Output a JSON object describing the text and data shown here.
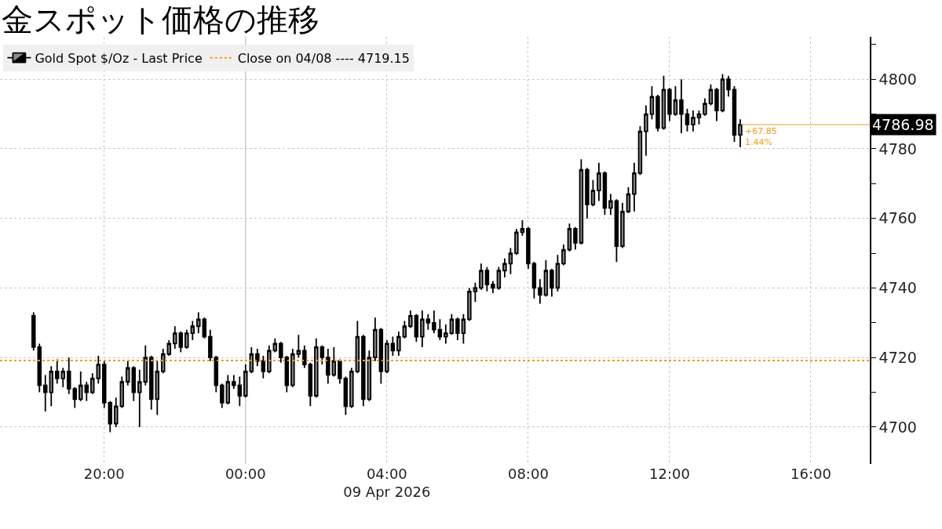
{
  "chart_data": {
    "type": "candlestick",
    "title": "金スポット価格の推移",
    "x": [
      "2026-04-08T18:00",
      "2026-04-08T18:10",
      "2026-04-08T18:20",
      "2026-04-08T18:30",
      "2026-04-08T18:40",
      "2026-04-08T18:50",
      "2026-04-08T19:00",
      "2026-04-08T19:10",
      "2026-04-08T19:20",
      "2026-04-08T19:30",
      "2026-04-08T19:40",
      "2026-04-08T19:50",
      "2026-04-08T20:00",
      "2026-04-08T20:10",
      "2026-04-08T20:20",
      "2026-04-08T20:30",
      "2026-04-08T20:40",
      "2026-04-08T20:50",
      "2026-04-08T21:00",
      "2026-04-08T21:10",
      "2026-04-08T21:20",
      "2026-04-08T21:30",
      "2026-04-08T21:40",
      "2026-04-08T21:50",
      "2026-04-08T22:00",
      "2026-04-08T22:10",
      "2026-04-08T22:20",
      "2026-04-08T22:30",
      "2026-04-08T22:40",
      "2026-04-08T22:50",
      "2026-04-08T23:00",
      "2026-04-08T23:10",
      "2026-04-08T23:20",
      "2026-04-08T23:30",
      "2026-04-08T23:40",
      "2026-04-08T23:50",
      "2026-04-09T00:00",
      "2026-04-09T00:10",
      "2026-04-09T00:20",
      "2026-04-09T00:30",
      "2026-04-09T00:40",
      "2026-04-09T00:50",
      "2026-04-09T01:00",
      "2026-04-09T01:10",
      "2026-04-09T01:20",
      "2026-04-09T01:30",
      "2026-04-09T01:40",
      "2026-04-09T01:50",
      "2026-04-09T02:00",
      "2026-04-09T02:10",
      "2026-04-09T02:20",
      "2026-04-09T02:30",
      "2026-04-09T02:40",
      "2026-04-09T02:50",
      "2026-04-09T03:00",
      "2026-04-09T03:10",
      "2026-04-09T03:20",
      "2026-04-09T03:30",
      "2026-04-09T03:40",
      "2026-04-09T03:50",
      "2026-04-09T04:00",
      "2026-04-09T04:10",
      "2026-04-09T04:20",
      "2026-04-09T04:30",
      "2026-04-09T04:40",
      "2026-04-09T04:50",
      "2026-04-09T05:00",
      "2026-04-09T05:10",
      "2026-04-09T05:20",
      "2026-04-09T05:30",
      "2026-04-09T05:40",
      "2026-04-09T05:50",
      "2026-04-09T06:00",
      "2026-04-09T06:10",
      "2026-04-09T06:20",
      "2026-04-09T06:30",
      "2026-04-09T06:40",
      "2026-04-09T06:50",
      "2026-04-09T07:00",
      "2026-04-09T07:10",
      "2026-04-09T07:20",
      "2026-04-09T07:30",
      "2026-04-09T07:40",
      "2026-04-09T07:50",
      "2026-04-09T08:00",
      "2026-04-09T08:10",
      "2026-04-09T08:20",
      "2026-04-09T08:30",
      "2026-04-09T08:40",
      "2026-04-09T08:50",
      "2026-04-09T09:00",
      "2026-04-09T09:10",
      "2026-04-09T09:20",
      "2026-04-09T09:30",
      "2026-04-09T09:40",
      "2026-04-09T09:50",
      "2026-04-09T10:00",
      "2026-04-09T10:10",
      "2026-04-09T10:20",
      "2026-04-09T10:30",
      "2026-04-09T10:40",
      "2026-04-09T10:50",
      "2026-04-09T11:00",
      "2026-04-09T11:10",
      "2026-04-09T11:20",
      "2026-04-09T11:30",
      "2026-04-09T11:40",
      "2026-04-09T11:50",
      "2026-04-09T12:00",
      "2026-04-09T12:10",
      "2026-04-09T12:20",
      "2026-04-09T12:30",
      "2026-04-09T12:40",
      "2026-04-09T12:50",
      "2026-04-09T13:00",
      "2026-04-09T13:10",
      "2026-04-09T13:20",
      "2026-04-09T13:30",
      "2026-04-09T13:40",
      "2026-04-09T13:50",
      "2026-04-09T14:00"
    ],
    "series": [
      {
        "name": "Gold Spot $/Oz - Last Price",
        "color": "#000000",
        "ohlc": [
          [
            4732,
            4733,
            4722,
            4723
          ],
          [
            4723,
            4724,
            4710,
            4712
          ],
          [
            4712,
            4715,
            4704.5,
            4710
          ],
          [
            4710,
            4717.5,
            4706,
            4716
          ],
          [
            4716,
            4719.5,
            4712.5,
            4714
          ],
          [
            4714,
            4717,
            4711.5,
            4716
          ],
          [
            4716,
            4720,
            4709.5,
            4711
          ],
          [
            4711,
            4711.5,
            4705.5,
            4708
          ],
          [
            4708,
            4716,
            4707.5,
            4712
          ],
          [
            4712,
            4713,
            4707.5,
            4710
          ],
          [
            4710,
            4715.5,
            4709.5,
            4714
          ],
          [
            4714,
            4720.5,
            4712.5,
            4718
          ],
          [
            4718,
            4719,
            4705.5,
            4707
          ],
          [
            4707,
            4707.5,
            4698.5,
            4701
          ],
          [
            4701,
            4708.5,
            4700,
            4706
          ],
          [
            4706,
            4714.5,
            4705.5,
            4713
          ],
          [
            4713,
            4719,
            4712,
            4717
          ],
          [
            4717,
            4717.5,
            4707.5,
            4710
          ],
          [
            4710,
            4716.5,
            4700,
            4713
          ],
          [
            4713,
            4723.5,
            4712,
            4720
          ],
          [
            4720,
            4720.5,
            4705,
            4708
          ],
          [
            4708,
            4719,
            4703.5,
            4716
          ],
          [
            4716,
            4722.5,
            4715.5,
            4721
          ],
          [
            4721,
            4725,
            4720.5,
            4724
          ],
          [
            4724,
            4729,
            4722.5,
            4727
          ],
          [
            4727,
            4727.5,
            4721.5,
            4723
          ],
          [
            4723,
            4728,
            4722.5,
            4727
          ],
          [
            4727,
            4730.5,
            4725,
            4729
          ],
          [
            4729,
            4733,
            4727,
            4731
          ],
          [
            4731,
            4731.5,
            4725.5,
            4726
          ],
          [
            4726,
            4728,
            4719,
            4720
          ],
          [
            4720,
            4720.5,
            4710,
            4712
          ],
          [
            4712,
            4712.5,
            4705.5,
            4707
          ],
          [
            4707,
            4715,
            4706.5,
            4713
          ],
          [
            4713,
            4715,
            4711,
            4712
          ],
          [
            4712,
            4714.5,
            4706,
            4709
          ],
          [
            4709,
            4718,
            4708.5,
            4716
          ],
          [
            4716,
            4723,
            4715.5,
            4721
          ],
          [
            4721,
            4722.5,
            4717.5,
            4719
          ],
          [
            4719,
            4720.5,
            4714,
            4716
          ],
          [
            4716,
            4723.5,
            4715.5,
            4722
          ],
          [
            4722,
            4725.5,
            4721.5,
            4724
          ],
          [
            4724,
            4724.5,
            4718.5,
            4720
          ],
          [
            4720,
            4720.5,
            4710,
            4712
          ],
          [
            4712,
            4722.5,
            4711.5,
            4721
          ],
          [
            4721,
            4726.5,
            4720,
            4722
          ],
          [
            4722,
            4723.5,
            4717,
            4718
          ],
          [
            4718,
            4718.5,
            4706,
            4709
          ],
          [
            4709,
            4725.5,
            4708.5,
            4723
          ],
          [
            4723,
            4723.5,
            4718,
            4720
          ],
          [
            4720,
            4722.5,
            4712.5,
            4715
          ],
          [
            4715,
            4723,
            4714.5,
            4719
          ],
          [
            4719,
            4719.5,
            4712.5,
            4714
          ],
          [
            4714,
            4714.5,
            4703.5,
            4706
          ],
          [
            4706,
            4717,
            4705.5,
            4716
          ],
          [
            4716,
            4730.5,
            4715.5,
            4726
          ],
          [
            4726,
            4726.5,
            4706,
            4708
          ],
          [
            4708,
            4722,
            4707.5,
            4720
          ],
          [
            4720,
            4731.5,
            4719,
            4728
          ],
          [
            4728,
            4728.5,
            4712.5,
            4716
          ],
          [
            4716,
            4725,
            4715.5,
            4724
          ],
          [
            4724,
            4726,
            4720.5,
            4722
          ],
          [
            4722,
            4727.5,
            4720.5,
            4726
          ],
          [
            4726,
            4730.5,
            4725.5,
            4729
          ],
          [
            4729,
            4733.5,
            4728.5,
            4732
          ],
          [
            4732,
            4732.5,
            4724.5,
            4726
          ],
          [
            4726,
            4733.5,
            4723,
            4731
          ],
          [
            4731,
            4732.5,
            4728,
            4730
          ],
          [
            4730,
            4733.5,
            4727,
            4728
          ],
          [
            4728,
            4731,
            4725,
            4726
          ],
          [
            4726,
            4729.5,
            4724,
            4727
          ],
          [
            4727,
            4732.5,
            4726.5,
            4731
          ],
          [
            4731,
            4731.5,
            4725,
            4727
          ],
          [
            4727,
            4732.5,
            4724,
            4731
          ],
          [
            4731,
            4740,
            4730.5,
            4739
          ],
          [
            4739,
            4741.5,
            4736,
            4740
          ],
          [
            4740,
            4747,
            4739.5,
            4745
          ],
          [
            4745,
            4746,
            4739,
            4741
          ],
          [
            4741,
            4742,
            4738.5,
            4740
          ],
          [
            4740,
            4746,
            4739.5,
            4745
          ],
          [
            4745,
            4748.5,
            4743,
            4747
          ],
          [
            4747,
            4751.5,
            4744,
            4750
          ],
          [
            4750,
            4757,
            4749.5,
            4756
          ],
          [
            4756,
            4759.5,
            4755,
            4757
          ],
          [
            4757,
            4757.5,
            4745.5,
            4747
          ],
          [
            4747,
            4747.5,
            4737,
            4740
          ],
          [
            4740,
            4742.5,
            4735.5,
            4738
          ],
          [
            4738,
            4748,
            4737.5,
            4745
          ],
          [
            4745,
            4745.5,
            4737.5,
            4740
          ],
          [
            4740,
            4749.5,
            4739,
            4747
          ],
          [
            4747,
            4752.5,
            4746.5,
            4751
          ],
          [
            4751,
            4758.5,
            4750.5,
            4757
          ],
          [
            4757,
            4757.5,
            4751,
            4753
          ],
          [
            4753,
            4777,
            4752.5,
            4774
          ],
          [
            4774,
            4774.5,
            4760,
            4764
          ],
          [
            4764,
            4771,
            4763.5,
            4768
          ],
          [
            4768,
            4776,
            4765,
            4773
          ],
          [
            4773,
            4773.5,
            4761,
            4763
          ],
          [
            4763,
            4767,
            4761,
            4765
          ],
          [
            4765,
            4765.5,
            4747.5,
            4752
          ],
          [
            4752,
            4764.5,
            4751.5,
            4762
          ],
          [
            4762,
            4769,
            4761.5,
            4767
          ],
          [
            4767,
            4776,
            4762,
            4773
          ],
          [
            4773,
            4786.5,
            4772.5,
            4785
          ],
          [
            4785,
            4792.5,
            4778,
            4790
          ],
          [
            4790,
            4798,
            4788.5,
            4795
          ],
          [
            4795,
            4795.5,
            4785,
            4786
          ],
          [
            4786,
            4801,
            4785.5,
            4797
          ],
          [
            4797,
            4797.5,
            4788,
            4790
          ],
          [
            4790,
            4798,
            4789.5,
            4794
          ],
          [
            4794,
            4800,
            4784.5,
            4790
          ],
          [
            4790,
            4791.5,
            4785,
            4787
          ],
          [
            4787,
            4791,
            4785,
            4789
          ],
          [
            4789,
            4791,
            4787,
            4790
          ],
          [
            4790,
            4794.5,
            4789.5,
            4793
          ],
          [
            4793,
            4798.5,
            4792.5,
            4797
          ],
          [
            4797,
            4797.5,
            4788,
            4791
          ],
          [
            4791,
            4801.5,
            4790.5,
            4800
          ],
          [
            4800,
            4801,
            4795,
            4797
          ],
          [
            4797,
            4798,
            4782,
            4784
          ],
          [
            4784,
            4788.5,
            4780.5,
            4786.98
          ]
        ]
      }
    ],
    "xlim": [
      "2026-04-08T17:03",
      "2026-04-09T17:40"
    ],
    "xticks": [
      {
        "value": "2026-04-08T20:00",
        "label": "20:00"
      },
      {
        "value": "2026-04-09T00:00",
        "label": "00:00"
      },
      {
        "value": "2026-04-09T04:00",
        "label": "04:00\n09 Apr 2026"
      },
      {
        "value": "2026-04-09T08:00",
        "label": "08:00"
      },
      {
        "value": "2026-04-09T12:00",
        "label": "12:00"
      },
      {
        "value": "2026-04-09T16:00",
        "label": "16:00"
      }
    ],
    "ylim": [
      4689.4,
      4812.2
    ],
    "yticks": [
      4700,
      {
        "value": 4710,
        "label": null
      },
      4720,
      {
        "value": 4730,
        "label": null
      },
      4740,
      {
        "value": 4750,
        "label": null
      },
      4760,
      {
        "value": 4770,
        "label": null
      },
      4780,
      {
        "value": 4790,
        "label": null
      },
      4800,
      {
        "value": 4810,
        "label": null
      }
    ],
    "ref_lines": [
      {
        "axis": "y",
        "value": 4719.15,
        "label": "Close on 04/08 ---- 4719.15",
        "color": "#f29a1d",
        "line_style": "dotted"
      },
      {
        "axis": "x",
        "value": "2026-04-09T00:00",
        "color": "#b4b4b4",
        "line_style": "solid"
      }
    ],
    "annotations": [
      {
        "text": "4786.98",
        "x": "2026-04-09T14:00",
        "y": 4786.98
      },
      {
        "text": "+67.85\n1.44%",
        "x": "2026-04-09T14:00",
        "y": 4786.98
      }
    ],
    "grid": true,
    "legend": "top left"
  }
}
